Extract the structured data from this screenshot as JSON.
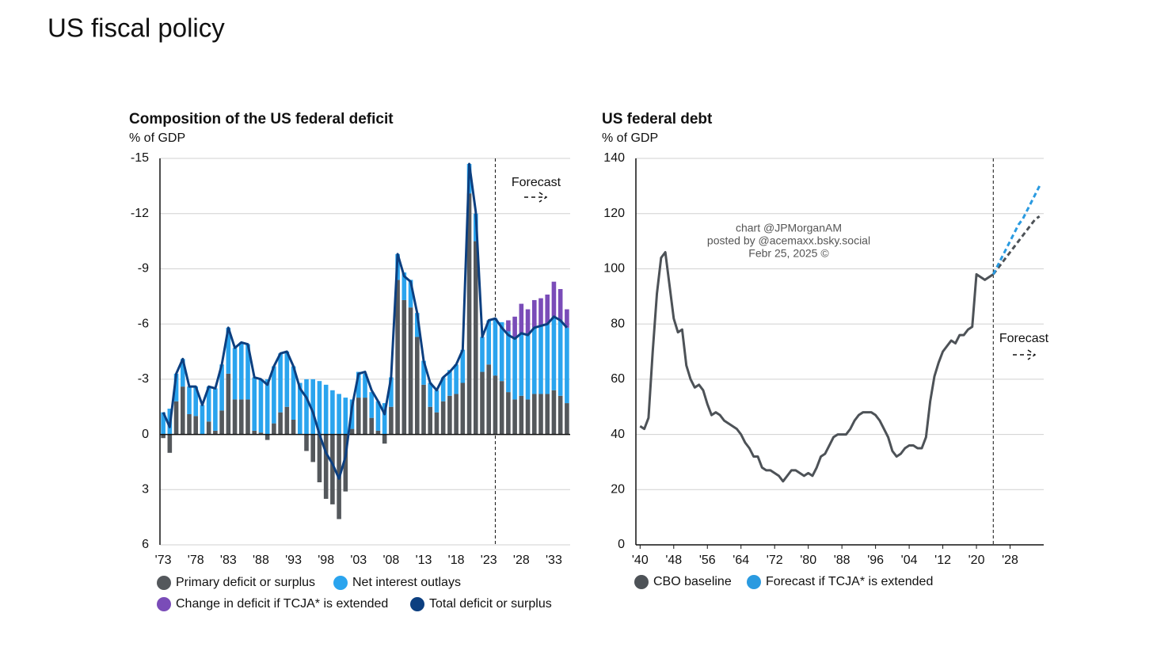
{
  "title": "US fiscal policy",
  "watermark": [
    "chart @JPMorganAM",
    "posted by @acemaxx.bsky.social",
    "Febr 25, 2025 ©"
  ],
  "chart_data": [
    {
      "type": "bar",
      "title": "Composition  of the US federal deficit",
      "subtitle": "% of GDP",
      "annotation": "Forecast",
      "forecast_start": 2024,
      "start_year": 1973,
      "categories": [
        "'73",
        null,
        null,
        null,
        null,
        "'78",
        null,
        null,
        null,
        null,
        "'83",
        null,
        null,
        null,
        null,
        "'88",
        null,
        null,
        null,
        null,
        "'93",
        null,
        null,
        null,
        null,
        "'98",
        null,
        null,
        null,
        null,
        "'03",
        null,
        null,
        null,
        null,
        "'08",
        null,
        null,
        null,
        null,
        "'13",
        null,
        null,
        null,
        null,
        "'18",
        null,
        null,
        null,
        null,
        "'23",
        null,
        null,
        null,
        null,
        "'28",
        null,
        null,
        null,
        null,
        "'33",
        null,
        null
      ],
      "ylim": [
        6,
        -15
      ],
      "yticks": [
        -15,
        -12,
        -9,
        -6,
        -3,
        0,
        3,
        6
      ],
      "grid": true,
      "series": [
        {
          "name": "Primary deficit or surplus",
          "type": "bar",
          "color": "#54585c",
          "values": [
            0.2,
            1.0,
            -1.8,
            -2.6,
            -1.1,
            -1.0,
            0.0,
            -0.7,
            -0.2,
            -1.3,
            -3.3,
            -1.9,
            -1.9,
            -1.9,
            -0.2,
            -0.1,
            0.3,
            -0.6,
            -1.2,
            -1.5,
            -0.8,
            0.0,
            0.9,
            1.5,
            2.6,
            3.5,
            3.8,
            4.6,
            3.1,
            -0.3,
            -2.0,
            -2.0,
            -0.9,
            -0.2,
            0.5,
            -1.5,
            -8.4,
            -7.3,
            -6.9,
            -5.3,
            -2.7,
            -1.5,
            -1.2,
            -1.8,
            -2.1,
            -2.2,
            -2.8,
            -13.1,
            -10.5,
            -3.4,
            -3.8,
            -3.2,
            -2.9,
            -2.3,
            -1.9,
            -2.1,
            -1.9,
            -2.2,
            -2.2,
            -2.2,
            -2.4,
            -2.1,
            -1.7
          ]
        },
        {
          "name": "Net interest outlays",
          "type": "bar",
          "color": "#2aa4ee",
          "values": [
            -1.2,
            -1.4,
            -1.5,
            -1.5,
            -1.5,
            -1.6,
            -1.6,
            -1.9,
            -2.3,
            -2.5,
            -2.5,
            -2.8,
            -3.1,
            -3.0,
            -2.9,
            -2.9,
            -3.0,
            -3.1,
            -3.2,
            -3.0,
            -2.9,
            -2.8,
            -3.0,
            -3.0,
            -2.9,
            -2.7,
            -2.4,
            -2.2,
            -2.0,
            -1.6,
            -1.4,
            -1.3,
            -1.4,
            -1.6,
            -1.7,
            -1.6,
            -1.4,
            -1.5,
            -1.5,
            -1.3,
            -1.3,
            -1.3,
            -1.2,
            -1.3,
            -1.4,
            -1.6,
            -1.8,
            -1.6,
            -1.5,
            -1.9,
            -2.4,
            -3.1,
            -3.2,
            -3.3,
            -3.3,
            -3.4,
            -3.5,
            -3.6,
            -3.7,
            -3.8,
            -4.0,
            -4.1,
            -4.1
          ]
        },
        {
          "name": "Change in deficit if TCJA* is extended",
          "type": "bar",
          "color": "#7a4cb8",
          "values": [
            null,
            null,
            null,
            null,
            null,
            null,
            null,
            null,
            null,
            null,
            null,
            null,
            null,
            null,
            null,
            null,
            null,
            null,
            null,
            null,
            null,
            null,
            null,
            null,
            null,
            null,
            null,
            null,
            null,
            null,
            null,
            null,
            null,
            null,
            null,
            null,
            null,
            null,
            null,
            null,
            null,
            null,
            null,
            null,
            null,
            null,
            null,
            null,
            null,
            null,
            null,
            null,
            null,
            -0.6,
            -1.2,
            -1.6,
            -1.4,
            -1.5,
            -1.5,
            -1.6,
            -1.9,
            -1.7,
            -1.0
          ]
        },
        {
          "name": "Total deficit or surplus",
          "type": "line",
          "color": "#0c3f80",
          "values": [
            -1.2,
            -0.4,
            -3.3,
            -4.1,
            -2.6,
            -2.6,
            -1.6,
            -2.6,
            -2.5,
            -3.8,
            -5.8,
            -4.7,
            -5.0,
            -4.9,
            -3.1,
            -3.0,
            -2.7,
            -3.7,
            -4.4,
            -4.5,
            -3.7,
            -2.5,
            -2.0,
            -1.2,
            0.0,
            1.0,
            1.6,
            2.4,
            1.2,
            -1.5,
            -3.3,
            -3.4,
            -2.4,
            -1.8,
            -1.1,
            -3.1,
            -9.8,
            -8.6,
            -8.3,
            -6.6,
            -4.0,
            -2.8,
            -2.4,
            -3.1,
            -3.4,
            -3.8,
            -4.6,
            -14.7,
            -12.1,
            -5.3,
            -6.2,
            -6.3,
            -5.8,
            -5.4,
            -5.2,
            -5.5,
            -5.4,
            -5.8,
            -5.9,
            -6.0,
            -6.4,
            -6.2,
            -5.8
          ]
        }
      ]
    },
    {
      "type": "line",
      "title": "US federal debt",
      "subtitle": "% of GDP",
      "annotation": "Forecast",
      "forecast_start": 2024,
      "xlim": [
        1939,
        2036
      ],
      "xticks": [
        {
          "value": 1940,
          "label": "'40"
        },
        {
          "value": 1948,
          "label": "'48"
        },
        {
          "value": 1956,
          "label": "'56"
        },
        {
          "value": 1964,
          "label": "'64"
        },
        {
          "value": 1972,
          "label": "'72"
        },
        {
          "value": 1980,
          "label": "'80"
        },
        {
          "value": 1988,
          "label": "'88"
        },
        {
          "value": 1996,
          "label": "'96"
        },
        {
          "value": 2004,
          "label": "'04"
        },
        {
          "value": 2012,
          "label": "'12"
        },
        {
          "value": 2020,
          "label": "'20"
        },
        {
          "value": 2028,
          "label": "'28"
        }
      ],
      "ylim": [
        0,
        140
      ],
      "yticks": [
        0,
        20,
        40,
        60,
        80,
        100,
        120,
        140
      ],
      "grid": true,
      "series": [
        {
          "name": "CBO baseline",
          "color": "#4d5257",
          "x": [
            1940,
            1941,
            1942,
            1943,
            1944,
            1945,
            1946,
            1947,
            1948,
            1949,
            1950,
            1951,
            1952,
            1953,
            1954,
            1955,
            1956,
            1957,
            1958,
            1959,
            1960,
            1961,
            1962,
            1963,
            1964,
            1965,
            1966,
            1967,
            1968,
            1969,
            1970,
            1971,
            1972,
            1973,
            1974,
            1975,
            1976,
            1977,
            1978,
            1979,
            1980,
            1981,
            1982,
            1983,
            1984,
            1985,
            1986,
            1987,
            1988,
            1989,
            1990,
            1991,
            1992,
            1993,
            1994,
            1995,
            1996,
            1997,
            1998,
            1999,
            2000,
            2001,
            2002,
            2003,
            2004,
            2005,
            2006,
            2007,
            2008,
            2009,
            2010,
            2011,
            2012,
            2013,
            2014,
            2015,
            2016,
            2017,
            2018,
            2019,
            2020,
            2021,
            2022,
            2023,
            2024,
            2025,
            2026,
            2027,
            2028,
            2029,
            2030,
            2031,
            2032,
            2033,
            2034,
            2035
          ],
          "values": [
            43,
            42,
            46,
            70,
            91,
            104,
            106,
            94,
            82,
            77,
            78,
            65,
            60,
            57,
            58,
            56,
            51,
            47,
            48,
            47,
            45,
            44,
            43,
            42,
            40,
            37,
            35,
            32,
            32,
            28,
            27,
            27,
            26,
            25,
            23,
            25,
            27,
            27,
            26,
            25,
            26,
            25,
            28,
            32,
            33,
            36,
            39,
            40,
            40,
            40,
            42,
            45,
            47,
            48,
            48,
            48,
            47,
            45,
            42,
            39,
            34,
            32,
            33,
            35,
            36,
            36,
            35,
            35,
            39,
            52,
            61,
            66,
            70,
            72,
            74,
            73,
            76,
            76,
            78,
            79,
            98,
            97,
            96,
            97,
            98,
            100,
            102,
            104,
            106,
            108,
            110,
            112,
            114,
            116,
            118,
            119
          ]
        },
        {
          "name": "Forecast if TCJA* is extended",
          "color": "#2a9ae0",
          "x": [
            2024,
            2025,
            2026,
            2027,
            2028,
            2029,
            2030,
            2031,
            2032,
            2033,
            2034,
            2035
          ],
          "values": [
            98,
            101,
            104,
            107,
            110,
            113,
            116,
            118,
            121,
            124,
            127,
            130
          ]
        }
      ]
    }
  ]
}
